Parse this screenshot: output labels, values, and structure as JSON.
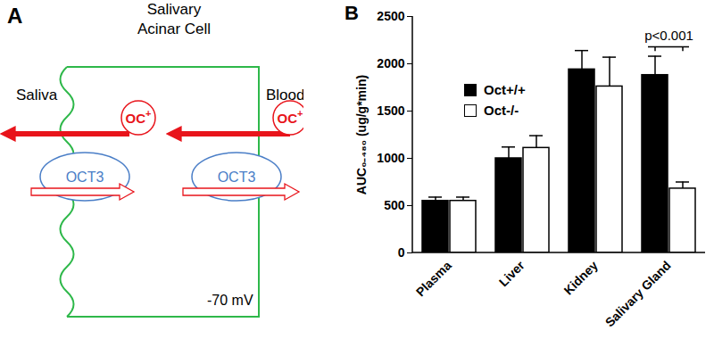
{
  "diagram": {
    "panel": "A",
    "title": [
      "Salivary",
      "Acinar Cell"
    ],
    "left": "Saliva",
    "right": "Blood",
    "substrate": {
      "text": "OC",
      "superscript": "+"
    },
    "transporter": "OCT3",
    "potential": "-70 mV"
  },
  "chart_data": {
    "panel": "B",
    "type": "bar",
    "categories": [
      "Plasma",
      "Liver",
      "Kidney",
      "Salivary Gland"
    ],
    "series": [
      {
        "name": "Oct+/+",
        "color": "#000000",
        "values": [
          550,
          1000,
          1940,
          1880
        ],
        "errors": [
          40,
          120,
          200,
          200
        ]
      },
      {
        "name": "Oct-/-",
        "color": "#ffffff",
        "values": [
          550,
          1110,
          1760,
          680
        ],
        "errors": [
          40,
          130,
          310,
          70
        ]
      }
    ],
    "ylabel": "AUC₀₋₄₈₀ (ug/g*min)",
    "ylim": [
      0,
      2500
    ],
    "yticks": [
      0,
      500,
      1000,
      1500,
      2000,
      2500
    ],
    "legend": "upper left",
    "annotations": [
      {
        "text": "p<0.001",
        "category": "Salivary Gland"
      }
    ]
  }
}
